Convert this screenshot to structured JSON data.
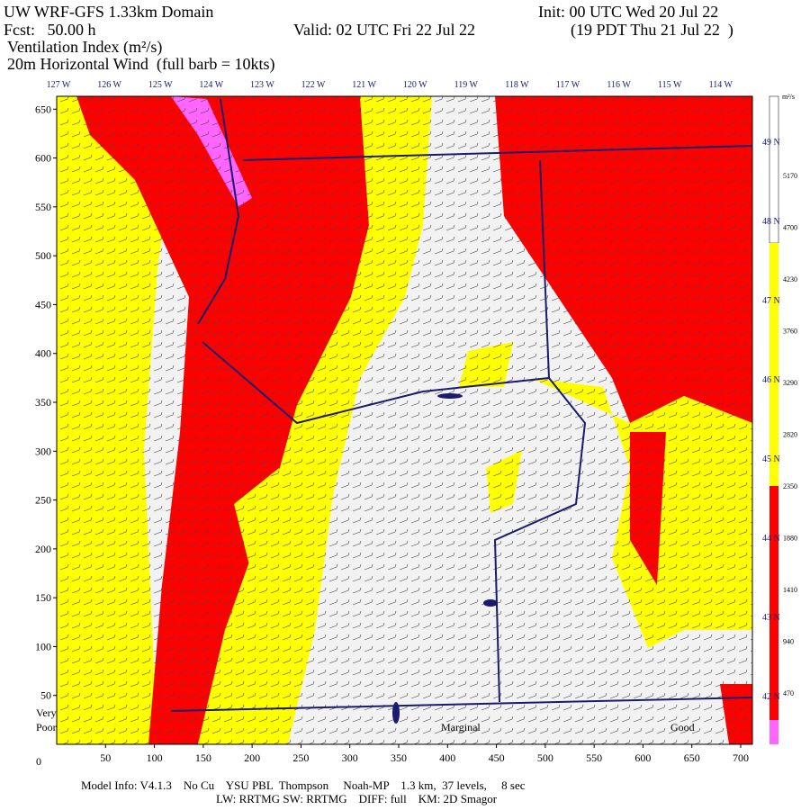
{
  "header": {
    "title": "UW WRF-GFS 1.33km Domain",
    "init": "Init: 00 UTC Wed 20 Jul 22",
    "fcst": "Fcst:   50.00 h",
    "valid": "Valid: 02 UTC Fri 22 Jul 22",
    "local": "(19 PDT Thu 21 Jul 22  )",
    "field": "Ventilation Index (m²/s)",
    "wind": "20m Horizontal Wind  (full barb = 10kts)"
  },
  "map": {
    "longitude_labels": [
      "127 W",
      "126 W",
      "125 W",
      "124 W",
      "123 W",
      "122 W",
      "121 W",
      "120 W",
      "119 W",
      "118 W",
      "117 W",
      "116 W",
      "115 W",
      "114 W"
    ],
    "latitude_labels": [
      "49 N",
      "48 N",
      "47 N",
      "46 N",
      "45 N",
      "44 N",
      "43 N",
      "42 N"
    ],
    "x_ticks": [
      50,
      100,
      150,
      200,
      250,
      300,
      350,
      400,
      450,
      500,
      550,
      600,
      650,
      700
    ],
    "y_ticks": [
      50,
      100,
      150,
      200,
      250,
      300,
      350,
      400,
      450,
      500,
      550,
      600,
      650
    ],
    "origin": "0",
    "region_labels": [
      "Very",
      "Poor",
      "Marginal",
      "Good"
    ]
  },
  "colorbar": {
    "unit": "m²/s",
    "labels": [
      "5170",
      "4700",
      "4230",
      "3760",
      "3290",
      "2820",
      "2350",
      "1880",
      "1410",
      "940",
      "470"
    ]
  },
  "footer": {
    "line1": "Model Info: V4.1.3    No Cu    YSU PBL  Thompson     Noah-MP    1.3 km,  37 levels,     8 sec",
    "line2": "LW: RRTMG SW: RRTMG    DIFF: full    KM: 2D Smagor"
  }
}
